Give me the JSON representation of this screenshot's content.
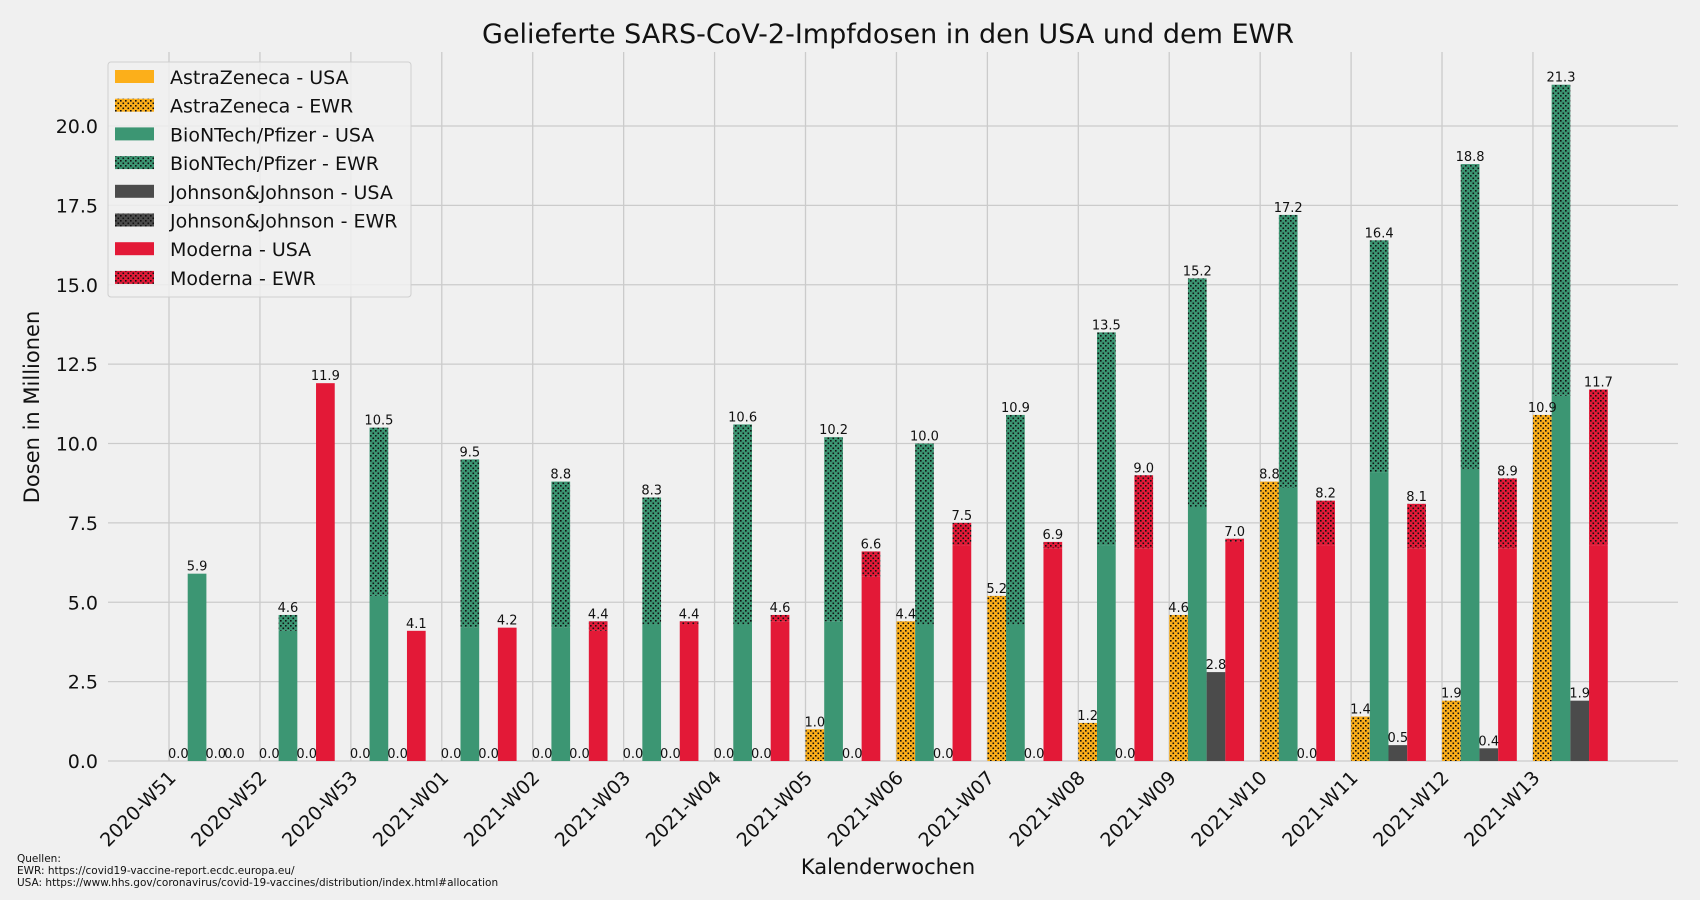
{
  "chart_data": {
    "type": "bar",
    "stacked": true,
    "title": "Gelieferte SARS-CoV-2-Impfdosen in den USA und dem EWR",
    "xlabel": "Kalenderwochen",
    "ylabel": "Dosen in Millionen",
    "ylim": [
      0,
      22.3
    ],
    "yticks": [
      "0.0",
      "2.5",
      "5.0",
      "7.5",
      "10.0",
      "12.5",
      "15.0",
      "17.5",
      "20.0"
    ],
    "grid": true,
    "legend_position": "top-left",
    "categories": [
      "2020-W51",
      "2020-W52",
      "2020-W53",
      "2021-W01",
      "2021-W02",
      "2021-W03",
      "2021-W04",
      "2021-W05",
      "2021-W06",
      "2021-W07",
      "2021-W08",
      "2021-W09",
      "2021-W10",
      "2021-W11",
      "2021-W12",
      "2021-W13"
    ],
    "vaccines": [
      {
        "name": "AstraZeneca",
        "color": "#fcaf1a",
        "usa": [
          0,
          0,
          0,
          0,
          0,
          0,
          0,
          0,
          0,
          0,
          0,
          0,
          0,
          0,
          0,
          0
        ],
        "ewr": [
          0,
          0,
          0,
          0,
          0,
          0,
          0,
          1.0,
          4.4,
          5.2,
          1.2,
          4.6,
          8.8,
          1.4,
          1.9,
          10.9
        ]
      },
      {
        "name": "BioNTech/Pfizer",
        "color": "#3c9673",
        "usa": [
          5.9,
          4.1,
          5.2,
          4.2,
          4.2,
          4.3,
          4.3,
          4.4,
          4.3,
          4.3,
          6.8,
          8.0,
          8.6,
          9.1,
          9.2,
          11.5
        ],
        "ewr": [
          0,
          0.5,
          5.3,
          5.3,
          4.6,
          4.0,
          6.3,
          5.8,
          5.7,
          6.6,
          6.7,
          7.2,
          8.6,
          7.3,
          9.6,
          9.8
        ]
      },
      {
        "name": "Johnson&Johnson",
        "color": "#4b4b4b",
        "usa": [
          0,
          0,
          0,
          0,
          0,
          0,
          0,
          0,
          0,
          0,
          0,
          2.8,
          0,
          0.5,
          0.4,
          1.9
        ],
        "ewr": [
          0,
          0,
          0,
          0,
          0,
          0,
          0,
          0,
          0,
          0,
          0,
          0,
          0,
          0,
          0,
          0
        ]
      },
      {
        "name": "Moderna",
        "color": "#e31937",
        "usa": [
          0,
          11.9,
          4.1,
          4.2,
          4.1,
          4.3,
          4.4,
          5.8,
          6.8,
          6.7,
          6.7,
          6.9,
          6.8,
          6.7,
          6.7,
          6.8
        ],
        "ewr": [
          0,
          0,
          0,
          0,
          0.3,
          0.1,
          0.2,
          0.8,
          0.7,
          0.2,
          2.3,
          0.1,
          1.4,
          1.4,
          2.2,
          4.9
        ]
      }
    ],
    "legend": [
      "AstraZeneca - USA",
      "AstraZeneca - EWR",
      "BioNTech/Pfizer - USA",
      "BioNTech/Pfizer - EWR",
      "Johnson&Johnson - USA",
      "Johnson&Johnson - EWR",
      "Moderna - USA",
      "Moderna - EWR"
    ]
  },
  "sources": {
    "heading": "Quellen:",
    "ewr": "EWR: https://covid19-vaccine-report.ecdc.europa.eu/",
    "usa": "USA: https://www.hhs.gov/coronavirus/covid-19-vaccines/distribution/index.html#allocation"
  }
}
